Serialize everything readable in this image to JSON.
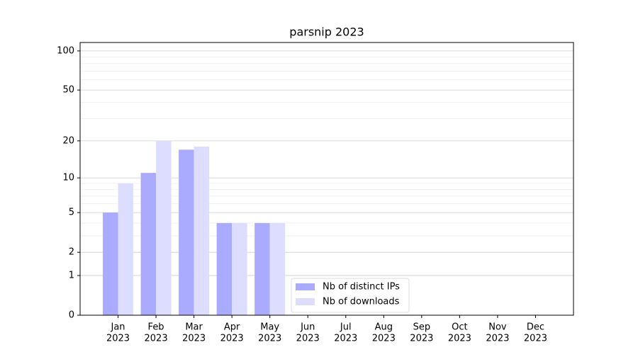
{
  "chart_data": {
    "type": "bar",
    "title": "parsnip 2023",
    "categories": [
      [
        "Jan",
        "2023"
      ],
      [
        "Feb",
        "2023"
      ],
      [
        "Mar",
        "2023"
      ],
      [
        "Apr",
        "2023"
      ],
      [
        "May",
        "2023"
      ],
      [
        "Jun",
        "2023"
      ],
      [
        "Jul",
        "2023"
      ],
      [
        "Aug",
        "2023"
      ],
      [
        "Sep",
        "2023"
      ],
      [
        "Oct",
        "2023"
      ],
      [
        "Nov",
        "2023"
      ],
      [
        "Dec",
        "2023"
      ]
    ],
    "series": [
      {
        "name": "Nb of distinct IPs",
        "color": "#aaaaff",
        "values": [
          5,
          11,
          17,
          4,
          4,
          0,
          0,
          0,
          0,
          0,
          0,
          0
        ]
      },
      {
        "name": "Nb of downloads",
        "color": "#ddddff",
        "values": [
          9,
          20,
          18,
          4,
          4,
          0,
          0,
          0,
          0,
          0,
          0,
          0
        ]
      }
    ],
    "yscale": "log1p",
    "ylim": [
      0,
      116
    ],
    "yticks": [
      0,
      1,
      2,
      5,
      10,
      20,
      50,
      100
    ],
    "minor_yticks": [
      3,
      4,
      6,
      7,
      8,
      9,
      30,
      40,
      60,
      70,
      80,
      90
    ],
    "grid": true,
    "legend": "lower center"
  }
}
